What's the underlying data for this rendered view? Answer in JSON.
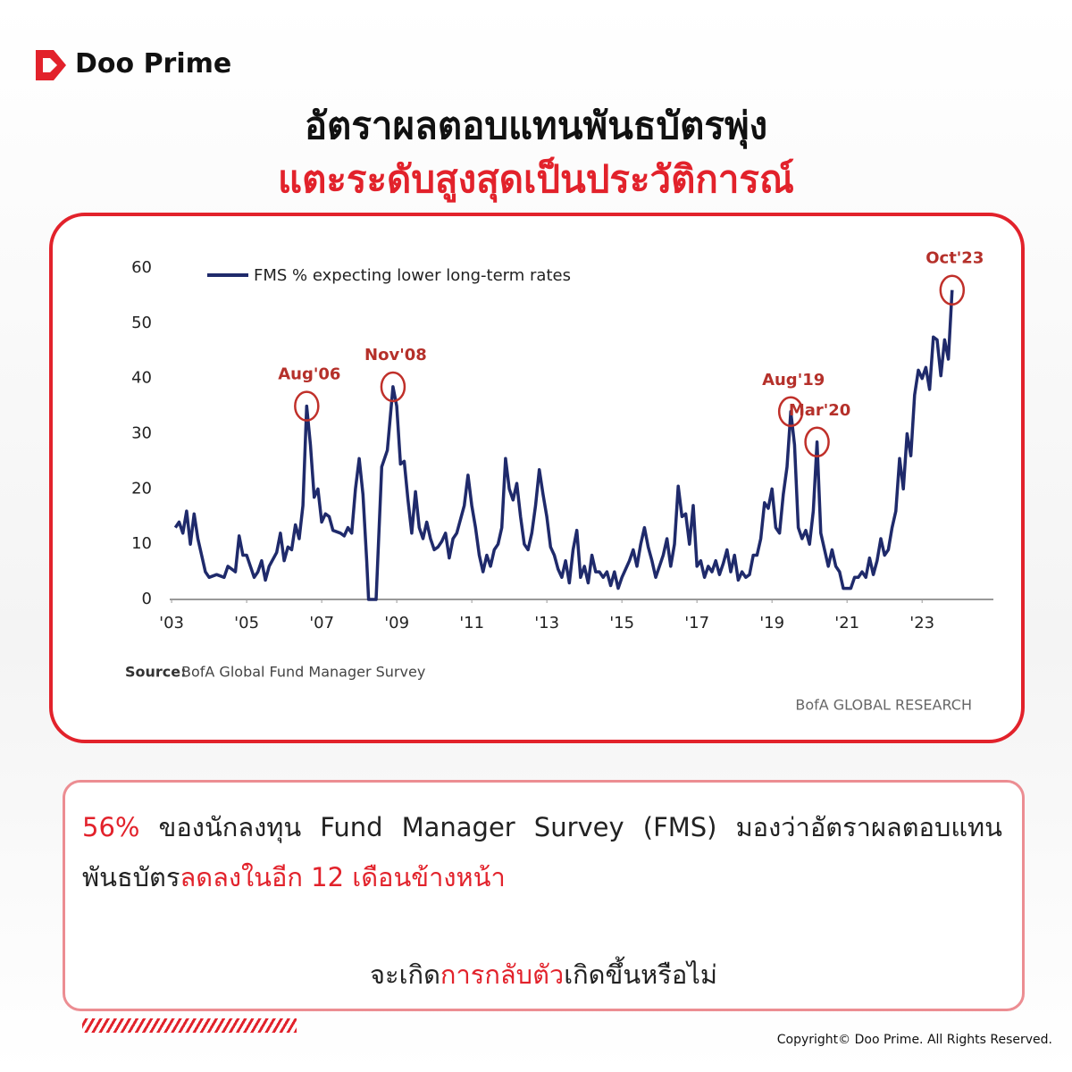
{
  "brand": "Doo Prime",
  "headline": {
    "line1": "อัตราผลตอบแทนพันธบัตรพุ่ง",
    "line2": "แตะระดับสูงสุดเป็นประวัติการณ์"
  },
  "chart_data": {
    "type": "line",
    "x": [
      2003.1,
      2003.2,
      2003.3,
      2003.4,
      2003.5,
      2003.6,
      2003.7,
      2003.8,
      2003.9,
      2004.0,
      2004.2,
      2004.4,
      2004.5,
      2004.7,
      2004.8,
      2004.9,
      2005.0,
      2005.1,
      2005.2,
      2005.3,
      2005.4,
      2005.5,
      2005.6,
      2005.8,
      2005.9,
      2006.0,
      2006.1,
      2006.2,
      2006.3,
      2006.4,
      2006.5,
      2006.6,
      2006.7,
      2006.8,
      2006.9,
      2007.0,
      2007.1,
      2007.2,
      2007.3,
      2007.5,
      2007.6,
      2007.7,
      2007.8,
      2007.9,
      2008.0,
      2008.1,
      2008.2,
      2008.25,
      2008.45,
      2008.6,
      2008.75,
      2008.9,
      2009.0,
      2009.1,
      2009.2,
      2009.3,
      2009.4,
      2009.5,
      2009.6,
      2009.7,
      2009.8,
      2009.9,
      2010.0,
      2010.1,
      2010.2,
      2010.3,
      2010.4,
      2010.5,
      2010.6,
      2010.8,
      2010.9,
      2011.0,
      2011.1,
      2011.2,
      2011.3,
      2011.4,
      2011.5,
      2011.6,
      2011.7,
      2011.8,
      2011.9,
      2012.0,
      2012.1,
      2012.2,
      2012.3,
      2012.4,
      2012.5,
      2012.6,
      2012.7,
      2012.8,
      2012.9,
      2013.0,
      2013.1,
      2013.2,
      2013.3,
      2013.4,
      2013.5,
      2013.6,
      2013.7,
      2013.8,
      2013.9,
      2014.0,
      2014.1,
      2014.2,
      2014.3,
      2014.4,
      2014.5,
      2014.6,
      2014.7,
      2014.8,
      2014.9,
      2015.0,
      2015.2,
      2015.3,
      2015.4,
      2015.5,
      2015.6,
      2015.7,
      2015.8,
      2015.9,
      2016.0,
      2016.1,
      2016.2,
      2016.3,
      2016.4,
      2016.5,
      2016.6,
      2016.7,
      2016.8,
      2016.9,
      2017.0,
      2017.1,
      2017.2,
      2017.3,
      2017.4,
      2017.5,
      2017.6,
      2017.7,
      2017.8,
      2017.9,
      2018.0,
      2018.1,
      2018.2,
      2018.3,
      2018.4,
      2018.5,
      2018.6,
      2018.7,
      2018.8,
      2018.9,
      2019.0,
      2019.1,
      2019.2,
      2019.3,
      2019.4,
      2019.5,
      2019.6,
      2019.7,
      2019.8,
      2019.9,
      2020.0,
      2020.1,
      2020.2,
      2020.3,
      2020.4,
      2020.5,
      2020.6,
      2020.7,
      2020.8,
      2020.9,
      2021.1,
      2021.2,
      2021.3,
      2021.4,
      2021.5,
      2021.6,
      2021.7,
      2021.8,
      2021.9,
      2022.0,
      2022.1,
      2022.2,
      2022.3,
      2022.4,
      2022.5,
      2022.6,
      2022.7,
      2022.8,
      2022.9,
      2023.0,
      2023.1,
      2023.2,
      2023.3,
      2023.4,
      2023.5,
      2023.6,
      2023.7,
      2023.8
    ],
    "series": [
      {
        "name": "FMS % expecting lower long-term rates",
        "color": "#1f2a6b",
        "values": [
          13,
          14,
          12,
          16,
          10,
          15.5,
          11,
          8,
          5,
          4,
          4.5,
          4,
          6,
          5,
          11.5,
          8,
          8,
          6,
          4,
          5,
          7,
          3.5,
          6,
          8.5,
          12,
          7,
          9.5,
          9,
          13.5,
          11,
          17,
          35,
          28,
          18.5,
          20,
          14,
          15.5,
          15,
          12.5,
          12,
          11.5,
          13,
          12,
          20,
          25.5,
          19,
          7,
          0,
          0,
          24,
          27,
          38.5,
          35,
          24.5,
          25,
          18,
          12,
          19.5,
          13,
          11,
          14,
          11,
          9,
          9.5,
          10.5,
          12,
          7.5,
          11,
          12,
          17,
          22.5,
          17,
          13,
          8,
          5,
          8,
          6,
          9,
          10,
          13,
          25.5,
          20,
          18,
          21,
          15,
          10,
          9,
          12,
          17,
          23.5,
          19,
          15,
          9.5,
          8,
          5.5,
          4,
          7,
          3,
          9,
          12.5,
          4,
          6,
          3,
          8,
          5,
          5,
          4,
          5,
          2.5,
          5,
          2,
          4,
          7,
          9,
          6,
          10,
          13,
          9.5,
          7,
          4,
          6,
          8,
          11,
          6,
          10,
          20.5,
          15,
          15.5,
          10,
          17,
          6,
          7,
          4,
          6,
          5,
          7,
          4.5,
          6.5,
          9,
          5,
          8,
          3.5,
          5,
          4,
          4.5,
          8,
          8,
          11,
          17.5,
          16.5,
          20,
          13,
          12,
          19,
          24,
          34,
          28,
          13,
          11,
          12.5,
          10,
          16,
          28.5,
          12,
          9,
          6,
          9,
          6,
          5,
          2,
          2,
          4,
          4,
          5,
          4,
          7.5,
          4.5,
          7,
          11,
          8,
          9,
          13,
          16,
          25.5,
          20,
          30,
          26,
          37,
          41.5,
          40,
          42,
          38,
          47.5,
          47,
          40.5,
          47,
          43.5,
          56
        ]
      }
    ],
    "xlim": [
      2002.95,
      2024.9
    ],
    "ylim": [
      0,
      60
    ],
    "xticks": [
      {
        "value": 2003,
        "label": "'03"
      },
      {
        "value": 2005,
        "label": "'05"
      },
      {
        "value": 2007,
        "label": "'07"
      },
      {
        "value": 2009,
        "label": "'09"
      },
      {
        "value": 2011,
        "label": "'11"
      },
      {
        "value": 2013,
        "label": "'13"
      },
      {
        "value": 2015,
        "label": "'15"
      },
      {
        "value": 2017,
        "label": "'17"
      },
      {
        "value": 2019,
        "label": "'19"
      },
      {
        "value": 2021,
        "label": "'21"
      },
      {
        "value": 2023,
        "label": "'23"
      }
    ],
    "yticks": [
      0,
      10,
      20,
      30,
      40,
      50,
      60
    ],
    "legend": "top-left",
    "annotations": [
      {
        "text": "Aug'06",
        "x": 2006.6,
        "y": 35
      },
      {
        "text": "Nov'08",
        "x": 2008.9,
        "y": 38.5
      },
      {
        "text": "Aug'19",
        "x": 2019.5,
        "y": 34
      },
      {
        "text": "Mar'20",
        "x": 2020.2,
        "y": 28.5
      },
      {
        "text": "Oct'23",
        "x": 2023.8,
        "y": 56
      }
    ],
    "source_label": "Source:",
    "source": "BofA Global Fund Manager Survey",
    "credit": "BofA GLOBAL RESEARCH"
  },
  "note": {
    "highlight": "56%",
    "text1": " ของนักลงทุน Fund Manager Survey (FMS) มองว่าอัตราผลตอบแทนพันธบัตร",
    "highlight2": "ลดลงในอีก 12 เดือนข้างหน้า",
    "q1": "จะเกิด",
    "q2": "การกลับตัว",
    "q3": "เกิดขึ้นหรือไม่"
  },
  "copyright": "Copyright© Doo Prime. All Rights Reserved."
}
